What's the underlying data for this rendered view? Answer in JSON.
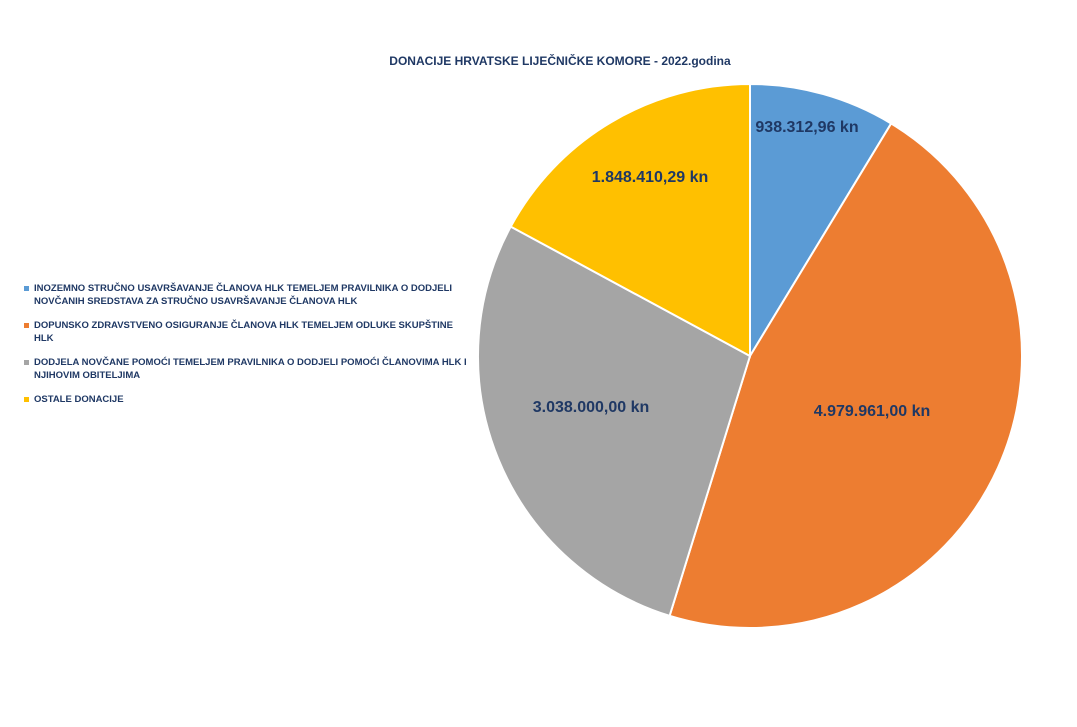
{
  "chart_data": {
    "type": "pie",
    "title": "DONACIJE HRVATSKE LIJEČNIČKE KOMORE - 2022.godina",
    "legend_position": "left",
    "slices": [
      {
        "label": "INOZEMNO STRUČNO USAVRŠAVANJE ČLANOVA HLK TEMELJEM PRAVILNIKA O DODJELI NOVČANIH SREDSTAVA ZA STRUČNO USAVRŠAVANJE ČLANOVA HLK",
        "value": 938312.96,
        "display": "938.312,96 kn",
        "color": "#5b9bd5"
      },
      {
        "label": "DOPUNSKO ZDRAVSTVENO OSIGURANJE ČLANOVA HLK TEMELJEM ODLUKE SKUPŠTINE HLK",
        "value": 4979961.0,
        "display": "4.979.961,00 kn",
        "color": "#ed7d31"
      },
      {
        "label": "DODJELA NOVČANE POMOĆI TEMELJEM PRAVILNIKA O DODJELI POMOĆI ČLANOVIMA HLK I NJIHOVIM OBITELJIMA",
        "value": 3038000.0,
        "display": "3.038.000,00 kn",
        "color": "#a5a5a5"
      },
      {
        "label": "OSTALE DONACIJE",
        "value": 1848410.29,
        "display": "1.848.410,29 kn",
        "color": "#ffc000"
      }
    ]
  }
}
